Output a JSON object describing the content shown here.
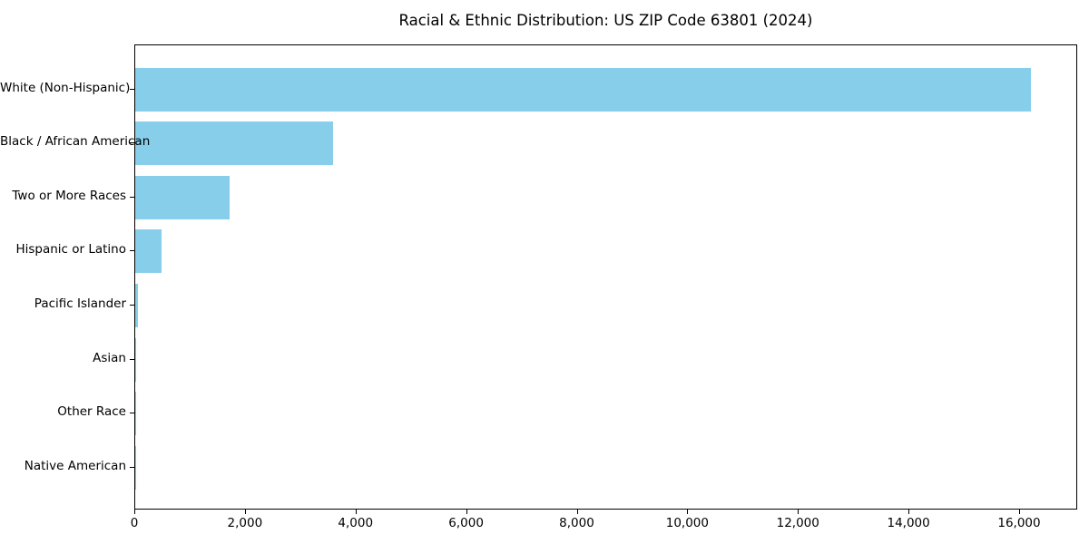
{
  "figure": {
    "background": "#ffffff",
    "frame_color": "#000000",
    "text_color": "#000000"
  },
  "chart_data": {
    "type": "bar",
    "orientation": "horizontal",
    "title": "Racial & Ethnic Distribution: US ZIP Code 63801 (2024)",
    "categories": [
      "White (Non-Hispanic)",
      "Black / African American",
      "Two or More Races",
      "Hispanic or Latino",
      "Pacific Islander",
      "Asian",
      "Other Race",
      "Native American"
    ],
    "values": [
      16200,
      3580,
      1700,
      470,
      50,
      20,
      10,
      5
    ],
    "xlabel": "",
    "ylabel": "",
    "xlim": [
      0,
      17050
    ],
    "x_ticks": [
      0,
      2000,
      4000,
      6000,
      8000,
      10000,
      12000,
      14000,
      16000
    ],
    "x_tick_labels": [
      "0",
      "2,000",
      "4,000",
      "6,000",
      "8,000",
      "10,000",
      "12,000",
      "14,000",
      "16,000"
    ],
    "bar_color": "#87CEEB",
    "grid": false,
    "legend": null
  }
}
